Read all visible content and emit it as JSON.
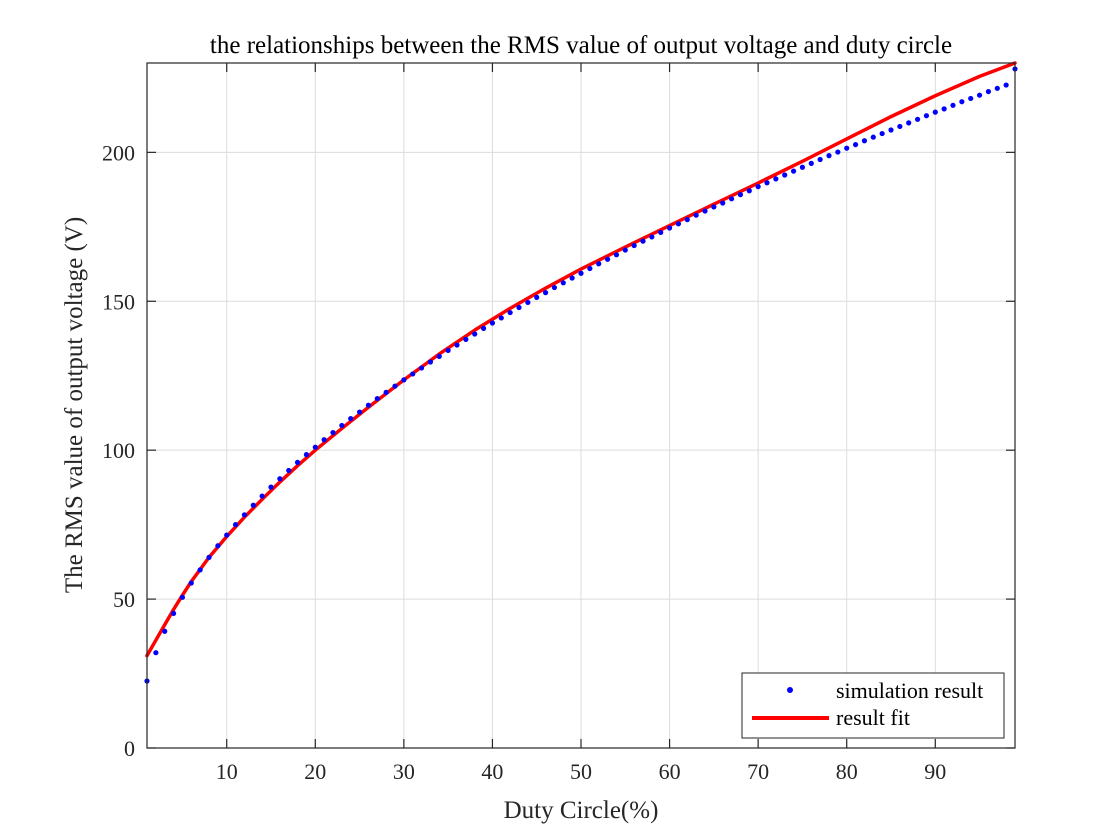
{
  "chart_data": {
    "type": "line",
    "title": "the relationships between the RMS value of output voltage and duty circle",
    "xlabel": "Duty Circle(%)",
    "ylabel": "The RMS value of output voltage (V)",
    "xlim": [
      1,
      99
    ],
    "ylim": [
      0,
      230
    ],
    "xticks": [
      10,
      20,
      30,
      40,
      50,
      60,
      70,
      80,
      90
    ],
    "yticks": [
      0,
      50,
      100,
      150,
      200
    ],
    "grid": true,
    "legend": "bottom-right",
    "colors": {
      "simulation": "#0000ff",
      "fit": "#ff0000",
      "grid": "#dcdcdc",
      "axis": "#262626"
    },
    "series": [
      {
        "name": "simulation result",
        "kind": "markers",
        "x": [
          1,
          2,
          3,
          4,
          5,
          6,
          7,
          8,
          9,
          10,
          11,
          12,
          13,
          14,
          15,
          16,
          17,
          18,
          19,
          20,
          21,
          22,
          23,
          24,
          25,
          26,
          27,
          28,
          29,
          30,
          31,
          32,
          33,
          34,
          35,
          36,
          37,
          38,
          39,
          40,
          41,
          42,
          43,
          44,
          45,
          46,
          47,
          48,
          49,
          50,
          51,
          52,
          53,
          54,
          55,
          56,
          57,
          58,
          59,
          60,
          61,
          62,
          63,
          64,
          65,
          66,
          67,
          68,
          69,
          70,
          71,
          72,
          73,
          74,
          75,
          76,
          77,
          78,
          79,
          80,
          81,
          82,
          83,
          84,
          85,
          86,
          87,
          88,
          89,
          90,
          91,
          92,
          93,
          94,
          95,
          96,
          97,
          98,
          99
        ],
        "y": [
          22.5,
          32.0,
          39.2,
          45.2,
          50.6,
          55.4,
          59.8,
          64.0,
          67.9,
          71.5,
          75.0,
          78.3,
          81.5,
          84.6,
          87.6,
          90.4,
          93.2,
          95.9,
          98.5,
          101.0,
          103.5,
          105.9,
          108.3,
          110.6,
          112.8,
          115.1,
          117.3,
          119.4,
          121.5,
          123.6,
          125.6,
          127.6,
          129.6,
          131.5,
          133.5,
          135.3,
          137.2,
          139.0,
          140.9,
          142.7,
          144.4,
          146.2,
          147.9,
          149.6,
          151.3,
          152.9,
          154.6,
          156.2,
          157.8,
          159.4,
          161.0,
          162.6,
          164.1,
          165.6,
          167.2,
          168.7,
          170.2,
          171.6,
          173.1,
          174.6,
          176.0,
          177.4,
          178.9,
          180.3,
          181.7,
          183.0,
          184.4,
          185.8,
          187.1,
          188.5,
          189.8,
          191.1,
          192.4,
          193.7,
          195.0,
          196.3,
          197.6,
          198.9,
          200.1,
          201.4,
          202.6,
          203.9,
          205.1,
          206.3,
          207.5,
          208.7,
          209.9,
          211.1,
          212.3,
          213.5,
          214.6,
          215.8,
          217.0,
          218.1,
          219.2,
          220.4,
          221.5,
          222.6,
          228.0
        ]
      },
      {
        "name": "result fit",
        "kind": "line",
        "x": [
          1,
          2,
          3,
          4,
          5,
          6,
          8,
          10,
          12,
          14,
          16,
          18,
          20,
          23,
          26,
          30,
          34,
          38,
          42,
          46,
          50,
          55,
          60,
          65,
          70,
          75,
          80,
          85,
          90,
          95,
          99
        ],
        "y": [
          31.0,
          36.2,
          41.4,
          46.5,
          51.3,
          55.9,
          64.0,
          71.0,
          77.5,
          83.5,
          89.3,
          94.8,
          100.0,
          107.3,
          114.4,
          123.6,
          132.3,
          140.3,
          147.6,
          154.4,
          160.8,
          168.2,
          175.4,
          182.6,
          189.7,
          197.0,
          204.5,
          212.0,
          219.0,
          225.5,
          230.0
        ]
      }
    ]
  }
}
